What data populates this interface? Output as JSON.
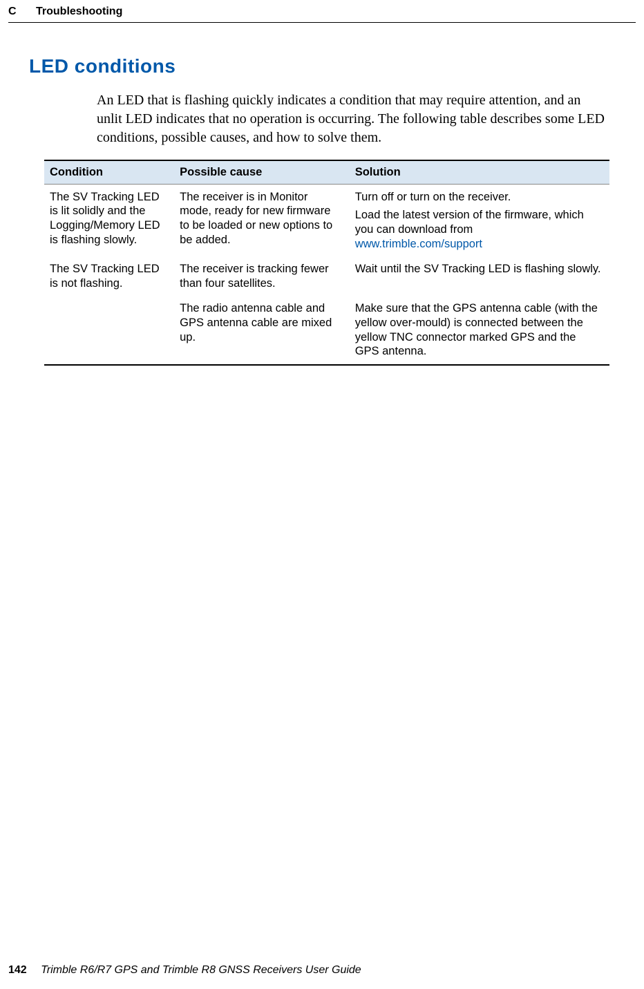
{
  "header": {
    "chapter_letter": "C",
    "chapter_title": "Troubleshooting"
  },
  "section": {
    "title": "LED conditions",
    "intro": "An LED that is flashing quickly indicates a condition that may require attention, and an unlit LED indicates that no operation is occurring. The following table describes some LED conditions, possible causes, and how to solve them."
  },
  "table": {
    "columns": [
      "Condition",
      "Possible cause",
      "Solution"
    ],
    "rows": [
      {
        "condition": "The SV Tracking LED is lit solidly and the Logging/Memory LED is flashing slowly.",
        "cause": "The receiver is in Monitor mode, ready for new firmware to be loaded or new options to be added.",
        "solution_pre": "Turn off or turn on the receiver.",
        "solution_mid": "Load the latest version of the firmware, which you can download from ",
        "solution_link": "www.trimble.com/support"
      },
      {
        "condition": "The SV Tracking LED is not flashing.",
        "cause": "The receiver is tracking fewer than four satellites.",
        "solution": "Wait until the SV Tracking LED is flashing slowly."
      },
      {
        "condition": "",
        "cause": "The radio antenna cable and GPS antenna cable are mixed up.",
        "solution": "Make sure that the GPS antenna cable (with the yellow over-mould) is connected between the yellow TNC connector marked GPS and the GPS antenna."
      }
    ]
  },
  "footer": {
    "page_number": "142",
    "doc_title": "Trimble R6/R7 GPS and Trimble R8 GNSS Receivers User Guide"
  },
  "colors": {
    "accent": "#0058a9",
    "header_band": "#d9e6f2"
  }
}
